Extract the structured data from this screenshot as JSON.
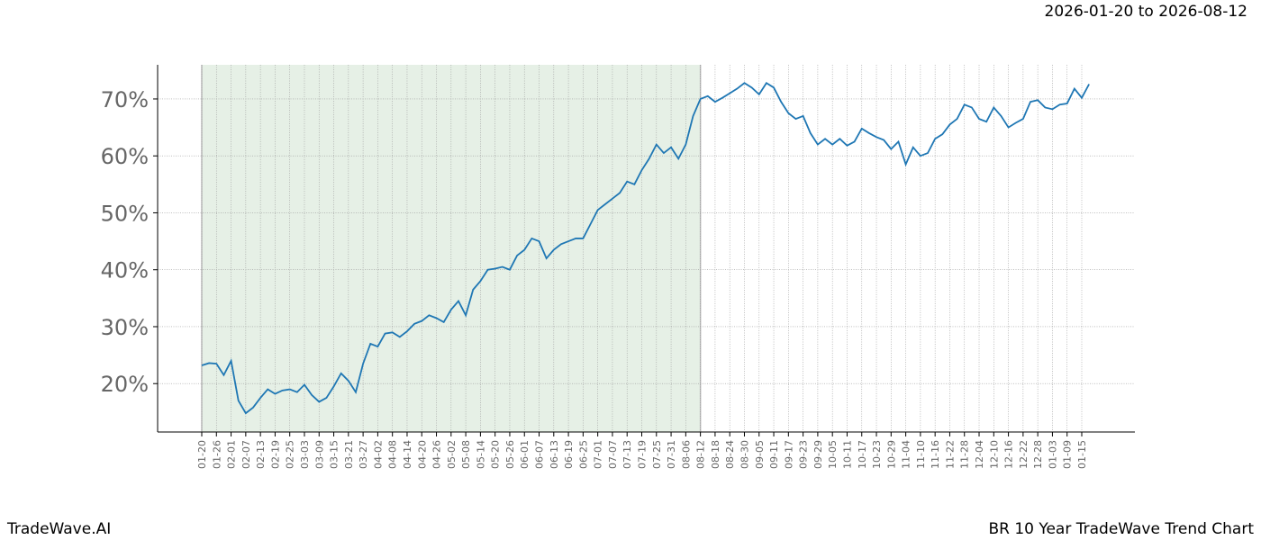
{
  "chart_data": {
    "type": "line",
    "subtitle": "2026-01-20 to 2026-08-12",
    "footer_left": "TradeWave.AI",
    "footer_right": "BR 10 Year TradeWave Trend Chart",
    "shade": {
      "from": "01-20",
      "to": "08-12"
    },
    "grid": true,
    "x": [
      "01-20",
      null,
      "01-26",
      null,
      "02-01",
      null,
      "02-07",
      null,
      "02-13",
      null,
      "02-19",
      null,
      "02-25",
      null,
      "03-03",
      null,
      "03-09",
      null,
      "03-15",
      null,
      "03-21",
      null,
      "03-27",
      null,
      "04-02",
      null,
      "04-08",
      null,
      "04-14",
      null,
      "04-20",
      null,
      "04-26",
      null,
      "05-02",
      null,
      "05-08",
      null,
      "05-14",
      null,
      "05-20",
      null,
      "05-26",
      null,
      "06-01",
      null,
      "06-07",
      null,
      "06-13",
      null,
      "06-19",
      null,
      "06-25",
      null,
      "07-01",
      null,
      "07-07",
      null,
      "07-13",
      null,
      "07-19",
      null,
      "07-25",
      null,
      "07-31",
      null,
      "08-06",
      null,
      "08-12",
      null,
      "08-18",
      null,
      "08-24",
      null,
      "08-30",
      null,
      "09-05",
      null,
      "09-11",
      null,
      "09-17",
      null,
      "09-23",
      null,
      "09-29",
      null,
      "10-05",
      null,
      "10-11",
      null,
      "10-17",
      null,
      "10-23",
      null,
      "10-29",
      null,
      "11-04",
      null,
      "11-10",
      null,
      "11-16",
      null,
      "11-22",
      null,
      "11-28",
      null,
      "12-04",
      null,
      "12-10",
      null,
      "12-16",
      null,
      "12-22",
      null,
      "12-28",
      null,
      "01-03",
      null,
      "01-09",
      null,
      "01-15",
      null
    ],
    "series": [
      {
        "name": "BR",
        "color": "#1f77b4",
        "values": [
          23.2,
          23.6,
          23.5,
          21.5,
          24,
          17,
          14.8,
          15.8,
          17.5,
          19,
          18.2,
          18.8,
          19,
          18.5,
          19.8,
          18,
          16.8,
          17.5,
          19.5,
          21.8,
          20.5,
          18.5,
          23.5,
          27,
          26.5,
          28.8,
          29,
          28.2,
          29.2,
          30.5,
          31,
          32,
          31.5,
          30.8,
          33,
          34.5,
          32,
          36.5,
          38,
          40,
          40.2,
          40.5,
          40,
          42.5,
          43.5,
          45.5,
          45,
          42,
          43.5,
          44.5,
          45,
          45.5,
          45.5,
          48,
          50.5,
          51.5,
          52.5,
          53.5,
          55.5,
          55,
          57.5,
          59.5,
          62,
          60.5,
          61.5,
          59.5,
          62,
          67,
          70,
          70.5,
          69.5,
          70.2,
          71,
          71.8,
          72.8,
          72,
          70.8,
          72.8,
          72,
          69.5,
          67.5,
          66.5,
          67,
          64,
          62,
          63,
          62,
          63,
          61.8,
          62.5,
          64.8,
          64,
          63.3,
          62.8,
          61.2,
          62.5,
          58.5,
          61.5,
          60,
          60.5,
          63,
          63.8,
          65.5,
          66.5,
          69,
          68.5,
          66.5,
          66,
          68.5,
          67,
          65,
          65.8,
          66.5,
          69.5,
          69.8,
          68.5,
          68.2,
          69,
          69.2,
          71.8,
          70.2,
          72.6
        ]
      }
    ],
    "ylim": [
      11.5,
      76
    ],
    "yticks": [
      {
        "value": 20,
        "label": "20%"
      },
      {
        "value": 30,
        "label": "30%"
      },
      {
        "value": 40,
        "label": "40%"
      },
      {
        "value": 50,
        "label": "50%"
      },
      {
        "value": 60,
        "label": "60%"
      },
      {
        "value": 70,
        "label": "70%"
      }
    ]
  }
}
